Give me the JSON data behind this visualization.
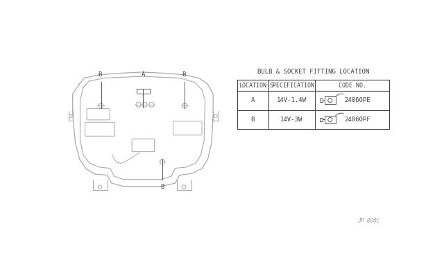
{
  "bg_color": "#ffffff",
  "line_color": "#aaaaaa",
  "dark_line": "#404040",
  "title": "BULB & SOCKET FITTING LOCATION",
  "table_headers": [
    "LOCATION",
    "SPECIFICATION",
    "CODE NO."
  ],
  "row_a": [
    "A",
    "14V-1.4W",
    "24860PE"
  ],
  "row_b": [
    "B",
    "14V-3W",
    "24860PF"
  ],
  "watermark": "JP 800C",
  "font_size_title": 6.5,
  "font_size_table": 6.5,
  "font_size_label": 6.5
}
